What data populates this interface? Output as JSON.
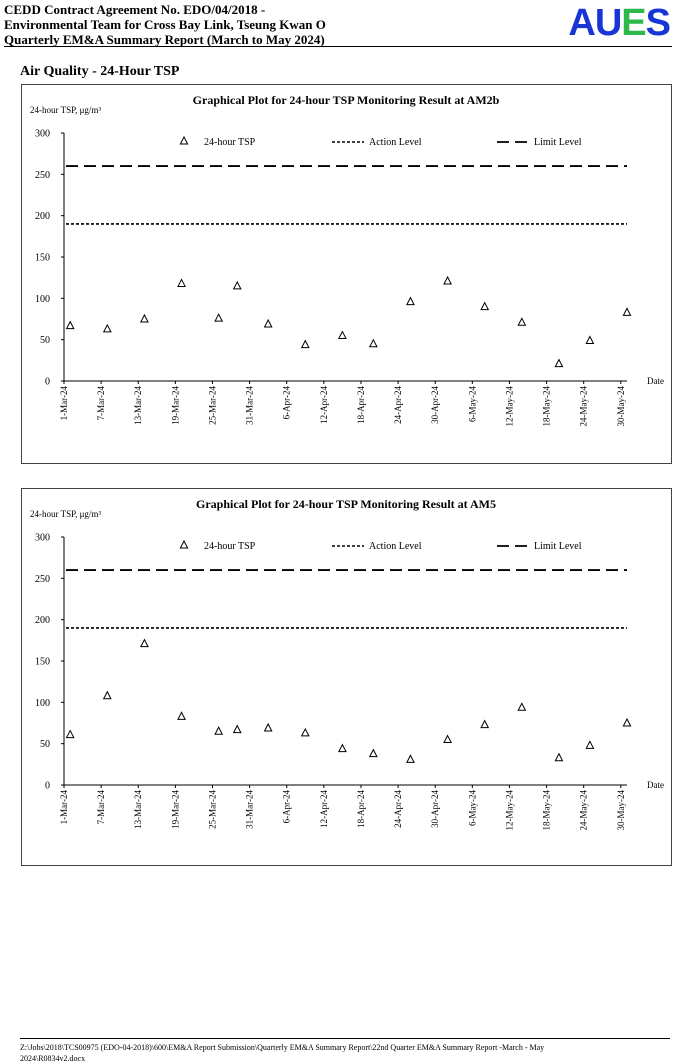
{
  "header": {
    "line1": "CEDD Contract Agreement No. EDO/04/2018 -",
    "line2": "Environmental Team for Cross Bay Link, Tseung Kwan O",
    "line3": "Quarterly EM&A Summary Report (March to May 2024)",
    "logo": [
      "A",
      "U",
      "E",
      "S"
    ],
    "logo_colors": [
      "#1a35d6",
      "#1a35d6",
      "#2db84a",
      "#1a35d6"
    ]
  },
  "section_title": "Air Quality - 24-Hour TSP",
  "footer": {
    "path_line1": "Z:\\Jobs\\2018\\TCS00975 (EDO-04-2018)\\600\\EM&A Report Submission\\Quarterly EM&A Summary Report\\22nd Quarter EM&A Summary Report -March - May",
    "path_line2": "2024\\R0834v2.docx"
  },
  "chart_data": [
    {
      "type": "scatter",
      "title": "Graphical Plot for 24-hour TSP Monitoring Result at AM2b",
      "ylabel": "24-hour TSP, μg/m³",
      "xlabel": "Date",
      "ylim": [
        0,
        300
      ],
      "yticks": [
        0,
        50,
        100,
        150,
        200,
        250,
        300
      ],
      "xlim": [
        "2024-03-01",
        "2024-05-31"
      ],
      "xtick_labels": [
        "1-Mar-24",
        "7-Mar-24",
        "13-Mar-24",
        "19-Mar-24",
        "25-Mar-24",
        "31-Mar-24",
        "6-Apr-24",
        "12-Apr-24",
        "18-Apr-24",
        "24-Apr-24",
        "30-Apr-24",
        "6-May-24",
        "12-May-24",
        "18-May-24",
        "24-May-24",
        "30-May-24"
      ],
      "legend_position": "top",
      "grid": false,
      "series": [
        {
          "name": "24-hour TSP",
          "x": [
            "2024-03-02",
            "2024-03-08",
            "2024-03-14",
            "2024-03-20",
            "2024-03-26",
            "2024-03-29",
            "2024-04-03",
            "2024-04-09",
            "2024-04-15",
            "2024-04-20",
            "2024-04-26",
            "2024-05-02",
            "2024-05-08",
            "2024-05-14",
            "2024-05-20",
            "2024-05-25",
            "2024-05-31"
          ],
          "values": [
            67,
            63,
            75,
            118,
            76,
            115,
            69,
            44,
            55,
            45,
            96,
            121,
            90,
            71,
            21,
            49,
            83
          ]
        },
        {
          "name": "Action Level",
          "values": [
            190
          ]
        },
        {
          "name": "Limit Level",
          "values": [
            260
          ]
        }
      ]
    },
    {
      "type": "scatter",
      "title": "Graphical Plot for 24-hour TSP Monitoring Result at AM5",
      "ylabel": "24-hour TSP, μg/m³",
      "xlabel": "Date",
      "ylim": [
        0,
        300
      ],
      "yticks": [
        0,
        50,
        100,
        150,
        200,
        250,
        300
      ],
      "xlim": [
        "2024-03-01",
        "2024-05-31"
      ],
      "xtick_labels": [
        "1-Mar-24",
        "7-Mar-24",
        "13-Mar-24",
        "19-Mar-24",
        "25-Mar-24",
        "31-Mar-24",
        "6-Apr-24",
        "12-Apr-24",
        "18-Apr-24",
        "24-Apr-24",
        "30-Apr-24",
        "6-May-24",
        "12-May-24",
        "18-May-24",
        "24-May-24",
        "30-May-24"
      ],
      "legend_position": "top",
      "grid": false,
      "series": [
        {
          "name": "24-hour TSP",
          "x": [
            "2024-03-02",
            "2024-03-08",
            "2024-03-14",
            "2024-03-20",
            "2024-03-26",
            "2024-03-29",
            "2024-04-03",
            "2024-04-09",
            "2024-04-15",
            "2024-04-20",
            "2024-04-26",
            "2024-05-02",
            "2024-05-08",
            "2024-05-14",
            "2024-05-20",
            "2024-05-25",
            "2024-05-31"
          ],
          "values": [
            61,
            108,
            171,
            83,
            65,
            67,
            69,
            63,
            44,
            38,
            31,
            55,
            73,
            94,
            33,
            48,
            75
          ]
        },
        {
          "name": "Action Level",
          "values": [
            190
          ]
        },
        {
          "name": "Limit Level",
          "values": [
            260
          ]
        }
      ]
    }
  ]
}
